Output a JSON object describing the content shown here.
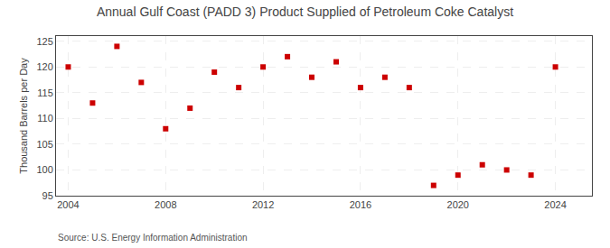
{
  "chart_data": {
    "type": "scatter",
    "title": "Annual Gulf Coast (PADD 3) Product Supplied of Petroleum Coke Catalyst",
    "ylabel": "Thousand Barrels per Day",
    "annotations": [
      "Source: U.S. Energy Information Administration"
    ],
    "x": [
      2004,
      2005,
      2006,
      2007,
      2008,
      2009,
      2010,
      2011,
      2012,
      2013,
      2014,
      2015,
      2016,
      2017,
      2018,
      2019,
      2020,
      2021,
      2022,
      2023,
      2024
    ],
    "values": [
      120.0,
      113.0,
      124.0,
      117.0,
      108.0,
      112.0,
      119.0,
      116.0,
      120.0,
      122.0,
      118.0,
      121.0,
      116.0,
      118.0,
      116.0,
      97.0,
      99.0,
      101.0,
      100.0,
      99.0,
      120.0
    ],
    "color": "#cc0000",
    "marker": "square",
    "xlim": [
      2003.5,
      2025.5
    ],
    "ylim": [
      95,
      126
    ],
    "xticks": [
      2004,
      2008,
      2012,
      2016,
      2020,
      2024
    ],
    "yticks": [
      95,
      100,
      105,
      110,
      115,
      120,
      125
    ],
    "grid": true
  }
}
